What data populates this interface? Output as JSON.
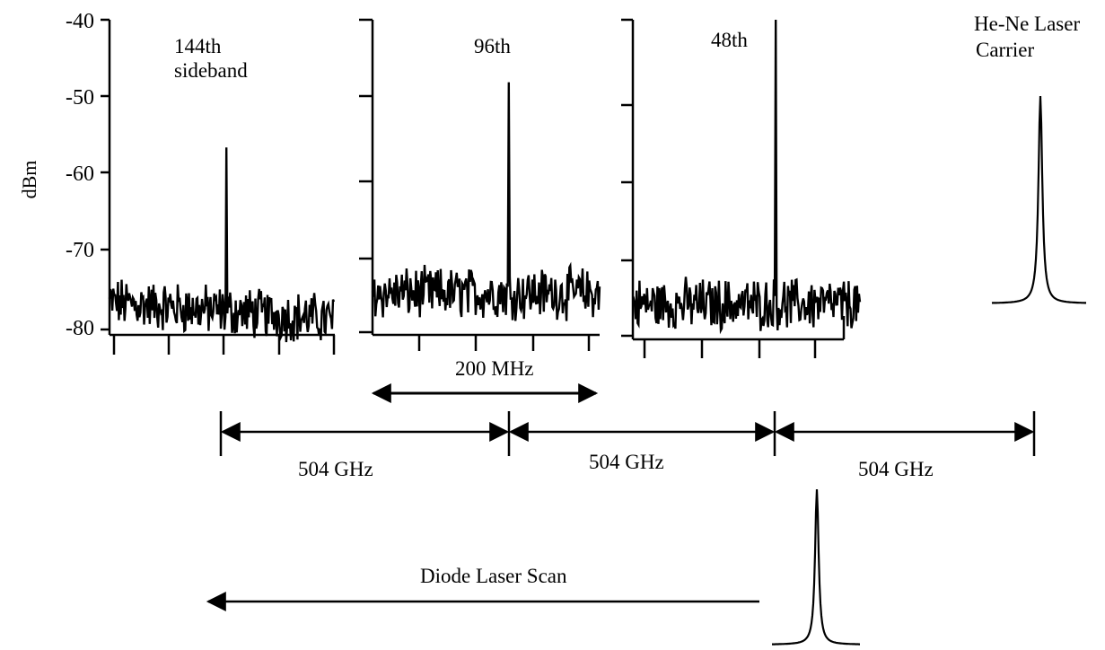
{
  "chart_data": {
    "type": "line",
    "ylabel": "dBm",
    "ylim": [
      -80,
      -40
    ],
    "yticks": [
      "-40",
      "-50",
      "-60",
      "-70",
      "-80"
    ],
    "panels": [
      {
        "label_line1": "144th",
        "label_line2": "sideband",
        "noise_floor": -76.5,
        "peak": -56.5,
        "peak_position": 0.52
      },
      {
        "label_line1": "96th",
        "label_line2": "",
        "noise_floor": -75,
        "peak": -48,
        "peak_position": 0.6
      },
      {
        "label_line1": "48th",
        "label_line2": "",
        "noise_floor": -76,
        "peak": -40,
        "peak_position": 0.63
      }
    ],
    "carrier": {
      "label_line1": "He-Ne Laser",
      "label_line2": "Carrier",
      "baseline": -77,
      "peak": -50
    },
    "span_label": "200 MHz",
    "spacing_labels": [
      "504 GHz",
      "504 GHz",
      "504 GHz"
    ],
    "scan_label": "Diode  Laser Scan"
  }
}
